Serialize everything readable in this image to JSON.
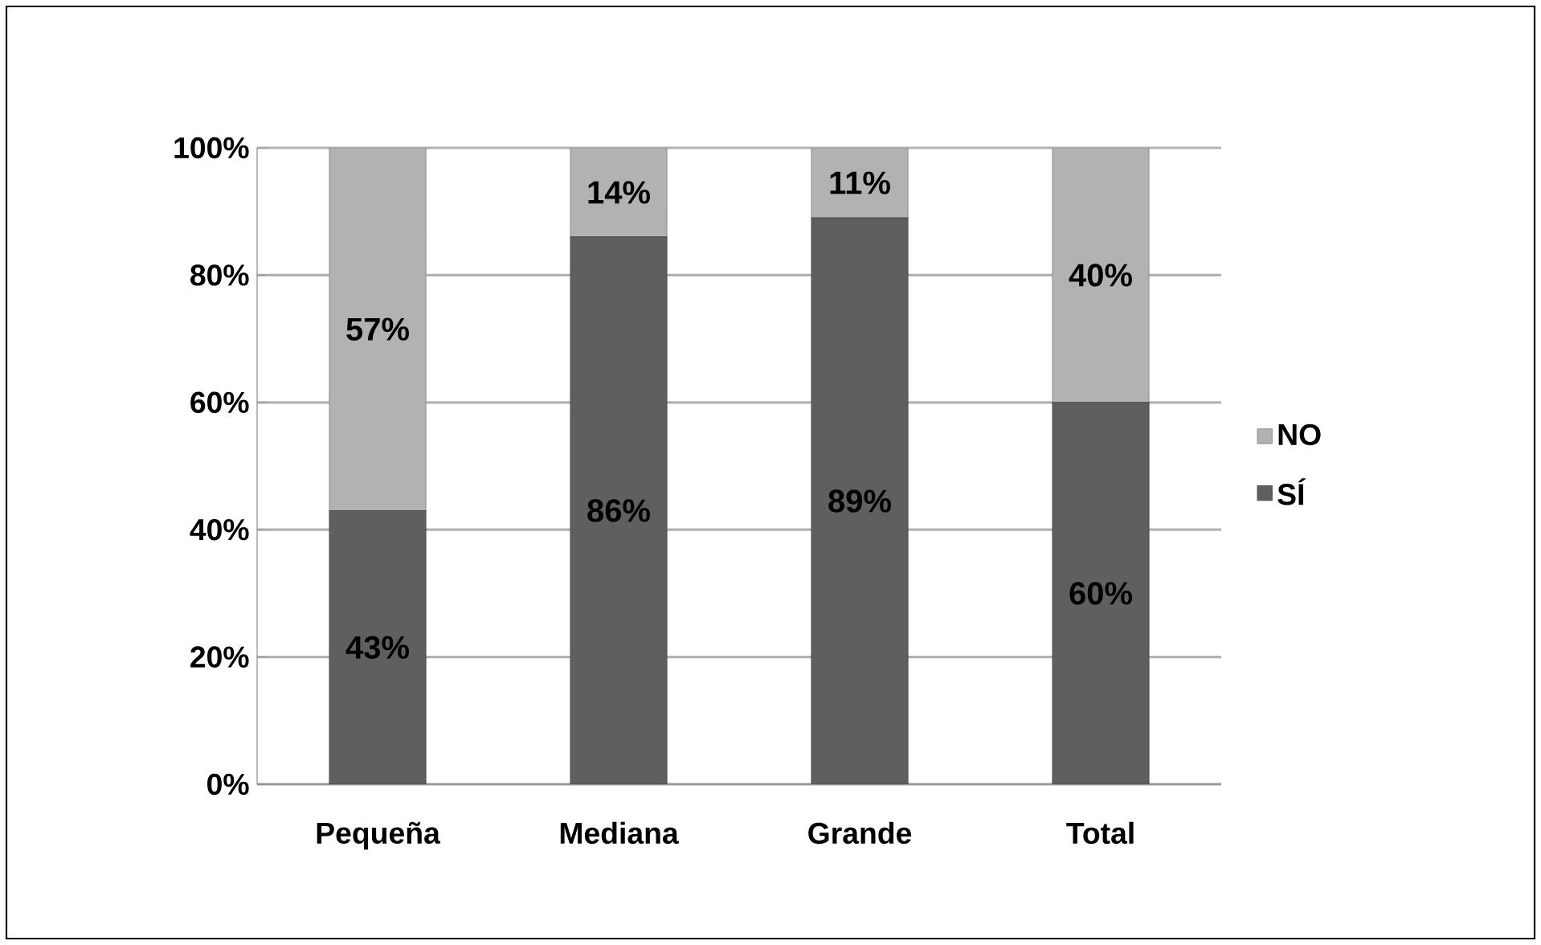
{
  "chart_data": {
    "type": "bar",
    "stacked": true,
    "categories": [
      "Pequeña",
      "Mediana",
      "Grande",
      "Total"
    ],
    "series": [
      {
        "name": "SÍ",
        "color": "#5f5f5f",
        "values": [
          43,
          86,
          89,
          60
        ],
        "value_labels": [
          "43%",
          "86%",
          "89%",
          "60%"
        ]
      },
      {
        "name": "NO",
        "color": "#b2b2b2",
        "values": [
          57,
          14,
          11,
          40
        ],
        "value_labels": [
          "57%",
          "14%",
          "11%",
          "40%"
        ]
      }
    ],
    "ylim": [
      0,
      100
    ],
    "yticks": [
      {
        "value": 0,
        "label": "0%"
      },
      {
        "value": 20,
        "label": "20%"
      },
      {
        "value": 40,
        "label": "40%"
      },
      {
        "value": 60,
        "label": "60%"
      },
      {
        "value": 80,
        "label": "80%"
      },
      {
        "value": 100,
        "label": "100%"
      }
    ],
    "grid": "y",
    "legend": "right"
  }
}
